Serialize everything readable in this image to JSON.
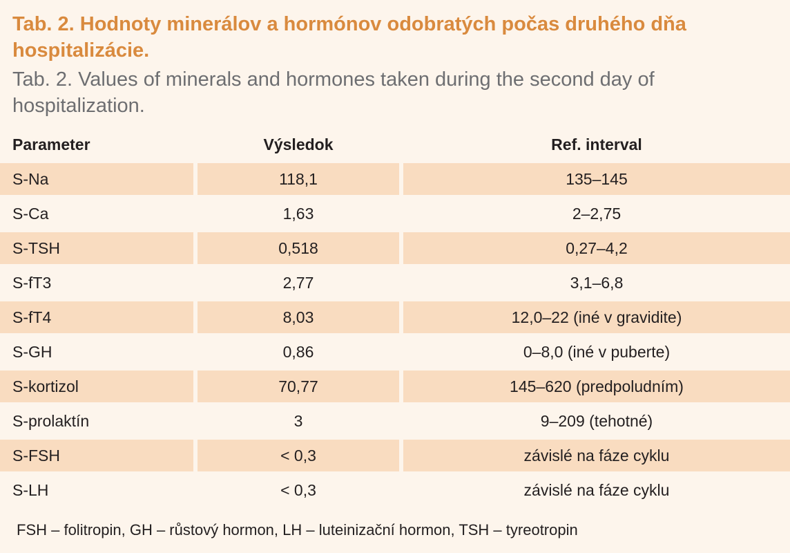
{
  "title_sk": "Tab. 2. Hodnoty minerálov a hormónov odobratých počas druhého dňa hospitalizácie.",
  "title_en": "Tab. 2. Values of minerals and hormones taken during the second day of hospitalization.",
  "table": {
    "headers": [
      "Parameter",
      "Výsledok",
      "Ref. interval"
    ],
    "rows": [
      {
        "parameter": "S-Na",
        "result": "118,1",
        "ref": "135–145"
      },
      {
        "parameter": "S-Ca",
        "result": "1,63",
        "ref": "2–2,75"
      },
      {
        "parameter": "S-TSH",
        "result": "0,518",
        "ref": "0,27–4,2"
      },
      {
        "parameter": "S-fT3",
        "result": "2,77",
        "ref": "3,1–6,8"
      },
      {
        "parameter": "S-fT4",
        "result": "8,03",
        "ref": "12,0–22 (iné v gravidite)"
      },
      {
        "parameter": "S-GH",
        "result": "0,86",
        "ref": "0–8,0 (iné v puberte)"
      },
      {
        "parameter": "S-kortizol",
        "result": "70,77",
        "ref": "145–620 (predpoludním)"
      },
      {
        "parameter": "S-prolaktín",
        "result": "3",
        "ref": "9–209 (tehotné)"
      },
      {
        "parameter": "S-FSH",
        "result": "< 0,3",
        "ref": "závislé na fáze cyklu"
      },
      {
        "parameter": "S-LH",
        "result": "< 0,3",
        "ref": "závislé na fáze cyklu"
      }
    ]
  },
  "footnote": "FSH – folitropin, GH – růstový hormon, LH – luteinizační hormon, TSH – tyreotropin",
  "colors": {
    "title_sk": "#d98a3e",
    "title_en": "#6d6e71",
    "background": "#fdf5ec",
    "row_shade": "#f9dcc0"
  }
}
